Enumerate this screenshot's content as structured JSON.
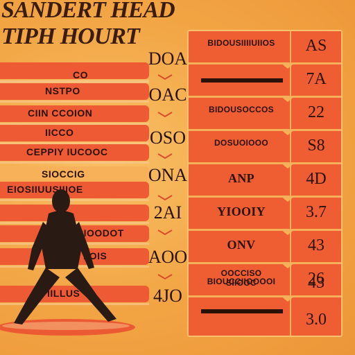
{
  "title": {
    "line1": "SANDERT HEAD",
    "line2": "TIPH HOURT"
  },
  "left_stripes": [
    {
      "text": ""
    },
    {
      "text": "CO"
    },
    {
      "text": "NSTPO"
    },
    {
      "text": "CIIN   CCOION"
    },
    {
      "text": "IICCO"
    },
    {
      "text": "CEPPIY   IUCOOC"
    },
    {
      "text": "SIOCCIG"
    },
    {
      "text": "EIOSIIUUSIIIOE"
    },
    {
      "text": "CIOODOT"
    },
    {
      "text": "IIOIS"
    },
    {
      "text": "IILLUS"
    },
    {
      "text": ""
    }
  ],
  "mid_numbers": [
    "DOA",
    "OAC",
    "OSO",
    "ONA",
    "2AI",
    "AOO",
    "4JO"
  ],
  "rows": [
    {
      "label": "BIDOUSIIIIUIIOS",
      "value": "AS"
    },
    {
      "label": "",
      "value": "7A"
    },
    {
      "label": "BIDOUSOCCOS",
      "value": "22"
    },
    {
      "label": "DOSUOIOOO",
      "value": "S8"
    },
    {
      "label": "ANP",
      "value": "4D"
    },
    {
      "label": "YIOOIY",
      "value": "3.7"
    },
    {
      "label": "ONV",
      "value": "43"
    },
    {
      "label": "OOCCISO   SIIOOC",
      "value": "26"
    },
    {
      "label": "BIOUCCIIOOOOI",
      "value": "43"
    },
    {
      "label": "",
      "value": "3.0"
    }
  ],
  "colors": {
    "background": "#f2a443",
    "stripe": "#ee5a34",
    "table": "#ef5d33",
    "ink": "#2a1208"
  }
}
